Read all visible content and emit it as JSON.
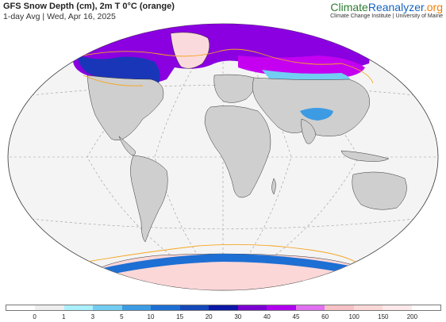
{
  "header": {
    "title": "GFS Snow Depth (cm), 2m T 0°C (orange)",
    "subtitle": "1-day Avg | Wed, Apr 16, 2025"
  },
  "brand": {
    "name_part1": "Climate",
    "name_part2": "Reanalyzer",
    "name_part3": ".org",
    "tagline": "Climate Change Institute | University of Maine"
  },
  "map": {
    "projection": "Winkel Tripel",
    "ocean_color": "#f4f4f4",
    "land_color": "#cfcfcf",
    "isotherm_color": "#f5a623"
  },
  "legend": {
    "labels": [
      "0",
      "1",
      "3",
      "5",
      "10",
      "15",
      "20",
      "30",
      "40",
      "45",
      "60",
      "100",
      "150",
      "200"
    ],
    "colors": [
      "#ffffff",
      "#eeeeee",
      "#aaf0ff",
      "#72cdf2",
      "#3d9be3",
      "#1d6fd3",
      "#1448b8",
      "#0b17a5",
      "#7a00cf",
      "#b000f0",
      "#e070ef",
      "#f6c1c5",
      "#fbd7d8",
      "#fde9ea",
      "#ffffff"
    ]
  }
}
